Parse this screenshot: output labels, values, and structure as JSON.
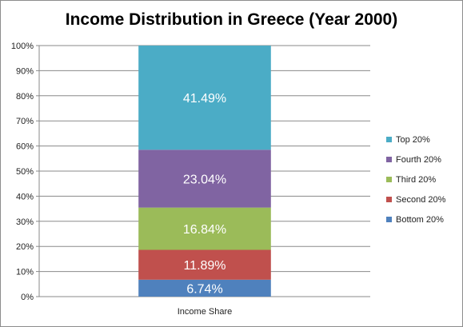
{
  "chart_data": {
    "type": "bar",
    "stacked": true,
    "title": "Income Distribution in Greece (Year 2000)",
    "categories": [
      "Income Share"
    ],
    "series": [
      {
        "name": "Bottom 20%",
        "values": [
          6.74
        ],
        "label": "6.74%",
        "color": "#4f81bd"
      },
      {
        "name": "Second 20%",
        "values": [
          11.89
        ],
        "label": "11.89%",
        "color": "#c0504d"
      },
      {
        "name": "Third 20%",
        "values": [
          16.84
        ],
        "label": "16.84%",
        "color": "#9bbb59"
      },
      {
        "name": "Fourth 20%",
        "values": [
          23.04
        ],
        "label": "23.04%",
        "color": "#8064a2"
      },
      {
        "name": "Top 20%",
        "values": [
          41.49
        ],
        "label": "41.49%",
        "color": "#4bacc6"
      }
    ],
    "ylim": [
      0,
      100
    ],
    "yticks": [
      "0%",
      "10%",
      "20%",
      "30%",
      "40%",
      "50%",
      "60%",
      "70%",
      "80%",
      "90%",
      "100%"
    ],
    "grid": true,
    "legend": "right"
  }
}
